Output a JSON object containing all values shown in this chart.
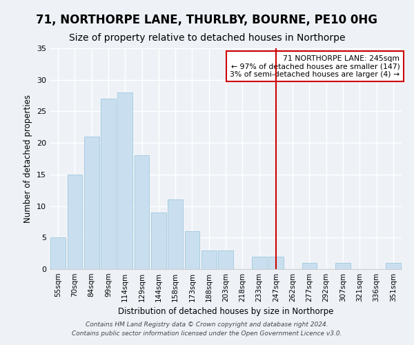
{
  "title": "71, NORTHORPE LANE, THURLBY, BOURNE, PE10 0HG",
  "subtitle": "Size of property relative to detached houses in Northorpe",
  "xlabel": "Distribution of detached houses by size in Northorpe",
  "ylabel": "Number of detached properties",
  "bar_labels": [
    "55sqm",
    "70sqm",
    "84sqm",
    "99sqm",
    "114sqm",
    "129sqm",
    "144sqm",
    "158sqm",
    "173sqm",
    "188sqm",
    "203sqm",
    "218sqm",
    "233sqm",
    "247sqm",
    "262sqm",
    "277sqm",
    "292sqm",
    "307sqm",
    "321sqm",
    "336sqm",
    "351sqm"
  ],
  "bar_values": [
    5,
    15,
    21,
    27,
    28,
    18,
    9,
    11,
    6,
    3,
    3,
    0,
    2,
    2,
    0,
    1,
    0,
    1,
    0,
    0,
    1
  ],
  "bar_color": "#c9dff0",
  "bar_edge_color": "#a8cce0",
  "vline_x_index": 13,
  "vline_color": "#cc0000",
  "annotation_title": "71 NORTHORPE LANE: 245sqm",
  "annotation_line1": "← 97% of detached houses are smaller (147)",
  "annotation_line2": "3% of semi-detached houses are larger (4) →",
  "annotation_box_color": "#ffffff",
  "annotation_box_edge": "#cc0000",
  "ylim": [
    0,
    35
  ],
  "yticks": [
    0,
    5,
    10,
    15,
    20,
    25,
    30,
    35
  ],
  "footer1": "Contains HM Land Registry data © Crown copyright and database right 2024.",
  "footer2": "Contains public sector information licensed under the Open Government Licence v3.0.",
  "title_fontsize": 12,
  "subtitle_fontsize": 10,
  "background_color": "#eef2f7"
}
